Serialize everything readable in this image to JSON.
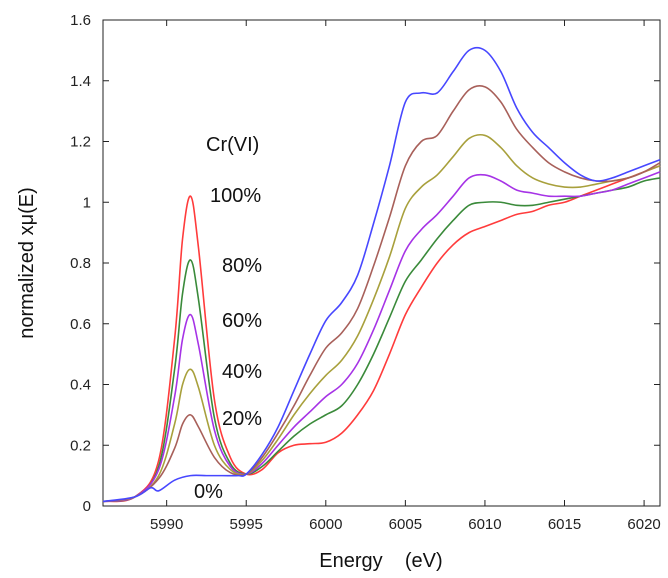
{
  "chart_data": {
    "type": "line",
    "title": "",
    "xlabel": "Energy    (eV)",
    "ylabel": "normalized xμ(E)",
    "xlim": [
      5986,
      6021
    ],
    "ylim": [
      0,
      1.6
    ],
    "xticks": [
      5990,
      5995,
      6000,
      6005,
      6010,
      6015,
      6020
    ],
    "yticks": [
      {
        "value": 0,
        "label": "0"
      },
      {
        "value": 0.2,
        "label": "0.2"
      },
      {
        "value": 0.4,
        "label": "0.4"
      },
      {
        "value": 0.6,
        "label": "0.6"
      },
      {
        "value": 0.8,
        "label": "0.8"
      },
      {
        "value": 1.0,
        "label": "1"
      },
      {
        "value": 1.2,
        "label": "1.2"
      },
      {
        "value": 1.4,
        "label": "1.4"
      },
      {
        "value": 1.6,
        "label": "1.6"
      }
    ],
    "grid": false,
    "legend_header": "Cr(VI)",
    "series": [
      {
        "name": "100%",
        "color": "#ff3b3b",
        "x": [
          5986,
          5988,
          5989.5,
          5990.5,
          5991,
          5991.5,
          5992,
          5993,
          5994,
          5995,
          5996,
          5997,
          5998,
          5999,
          6000,
          6001,
          6002,
          6003,
          6004,
          6005,
          6006,
          6007,
          6008,
          6009,
          6010,
          6011,
          6012,
          6013,
          6014,
          6015,
          6016,
          6017,
          6018,
          6019,
          6020,
          6021
        ],
        "values": [
          0.015,
          0.03,
          0.15,
          0.55,
          0.88,
          1.02,
          0.85,
          0.35,
          0.16,
          0.105,
          0.12,
          0.175,
          0.2,
          0.205,
          0.21,
          0.24,
          0.3,
          0.38,
          0.5,
          0.63,
          0.72,
          0.8,
          0.86,
          0.9,
          0.92,
          0.94,
          0.96,
          0.97,
          0.99,
          1.0,
          1.02,
          1.04,
          1.06,
          1.08,
          1.1,
          1.12
        ]
      },
      {
        "name": "80%",
        "color": "#3a8a3a",
        "x": [
          5986,
          5988,
          5989.5,
          5990.5,
          5991,
          5991.5,
          5992,
          5993,
          5994,
          5995,
          5996,
          5997,
          5998,
          5999,
          6000,
          6001,
          6002,
          6003,
          6004,
          6005,
          6006,
          6007,
          6008,
          6009,
          6010,
          6011,
          6012,
          6013,
          6014,
          6015,
          6016,
          6017,
          6018,
          6019,
          6020,
          6021
        ],
        "values": [
          0.015,
          0.03,
          0.13,
          0.45,
          0.7,
          0.81,
          0.68,
          0.29,
          0.14,
          0.105,
          0.13,
          0.18,
          0.23,
          0.27,
          0.3,
          0.33,
          0.4,
          0.5,
          0.62,
          0.74,
          0.81,
          0.88,
          0.94,
          0.99,
          1.0,
          1.0,
          0.99,
          0.99,
          1.0,
          1.01,
          1.02,
          1.03,
          1.04,
          1.05,
          1.07,
          1.08
        ]
      },
      {
        "name": "60%",
        "color": "#a633e6",
        "x": [
          5986,
          5988,
          5989.5,
          5990.5,
          5991,
          5991.5,
          5992,
          5993,
          5994,
          5995,
          5996,
          5997,
          5998,
          5999,
          6000,
          6001,
          6002,
          6003,
          6004,
          6005,
          6006,
          6007,
          6008,
          6009,
          6010,
          6011,
          6012,
          6013,
          6014,
          6015,
          6016,
          6017,
          6018,
          6019,
          6020,
          6021
        ],
        "values": [
          0.015,
          0.03,
          0.12,
          0.36,
          0.55,
          0.63,
          0.53,
          0.25,
          0.13,
          0.105,
          0.14,
          0.2,
          0.26,
          0.31,
          0.36,
          0.4,
          0.47,
          0.58,
          0.71,
          0.84,
          0.91,
          0.96,
          1.02,
          1.08,
          1.09,
          1.07,
          1.04,
          1.03,
          1.02,
          1.02,
          1.02,
          1.03,
          1.04,
          1.06,
          1.08,
          1.1
        ]
      },
      {
        "name": "40%",
        "color": "#a8a03c",
        "x": [
          5986,
          5988,
          5989.5,
          5990.5,
          5991,
          5991.5,
          5992,
          5993,
          5994,
          5995,
          5996,
          5997,
          5998,
          5999,
          6000,
          6001,
          6002,
          6003,
          6004,
          6005,
          6006,
          6007,
          6008,
          6009,
          6010,
          6011,
          6012,
          6013,
          6014,
          6015,
          6016,
          6017,
          6018,
          6019,
          6020,
          6021
        ],
        "values": [
          0.015,
          0.03,
          0.1,
          0.27,
          0.4,
          0.45,
          0.39,
          0.2,
          0.12,
          0.105,
          0.15,
          0.22,
          0.3,
          0.37,
          0.43,
          0.48,
          0.56,
          0.68,
          0.82,
          0.98,
          1.05,
          1.09,
          1.15,
          1.21,
          1.22,
          1.18,
          1.12,
          1.08,
          1.06,
          1.05,
          1.05,
          1.06,
          1.07,
          1.08,
          1.1,
          1.12
        ]
      },
      {
        "name": "20%",
        "color": "#a8605a",
        "x": [
          5986,
          5988,
          5989.5,
          5990.5,
          5991,
          5991.5,
          5992,
          5993,
          5994,
          5995,
          5996,
          5997,
          5998,
          5999,
          6000,
          6001,
          6002,
          6003,
          6004,
          6005,
          6006,
          6007,
          6008,
          6009,
          6010,
          6011,
          6012,
          6013,
          6014,
          6015,
          6016,
          6017,
          6018,
          6019,
          6020,
          6021
        ],
        "values": [
          0.015,
          0.03,
          0.09,
          0.19,
          0.27,
          0.3,
          0.26,
          0.16,
          0.11,
          0.105,
          0.16,
          0.24,
          0.33,
          0.43,
          0.52,
          0.57,
          0.65,
          0.79,
          0.95,
          1.12,
          1.2,
          1.22,
          1.3,
          1.37,
          1.38,
          1.33,
          1.24,
          1.18,
          1.13,
          1.1,
          1.08,
          1.07,
          1.07,
          1.08,
          1.1,
          1.13
        ]
      },
      {
        "name": "0%",
        "color": "#4747ff",
        "x": [
          5986,
          5988,
          5989,
          5989.5,
          5990.5,
          5991.5,
          5992.5,
          5993.5,
          5994.5,
          5995,
          5996,
          5997,
          5998,
          5999,
          6000,
          6001,
          6002,
          6003,
          6004,
          6005,
          6006,
          6007,
          6008,
          6009,
          6010,
          6011,
          6012,
          6013,
          6014,
          6015,
          6016,
          6017,
          6018,
          6019,
          6020,
          6021
        ],
        "values": [
          0.015,
          0.03,
          0.06,
          0.05,
          0.085,
          0.1,
          0.1,
          0.1,
          0.1,
          0.105,
          0.17,
          0.26,
          0.38,
          0.5,
          0.61,
          0.67,
          0.76,
          0.93,
          1.12,
          1.33,
          1.36,
          1.36,
          1.43,
          1.5,
          1.5,
          1.43,
          1.31,
          1.23,
          1.18,
          1.13,
          1.09,
          1.07,
          1.08,
          1.1,
          1.12,
          1.14
        ]
      }
    ]
  }
}
